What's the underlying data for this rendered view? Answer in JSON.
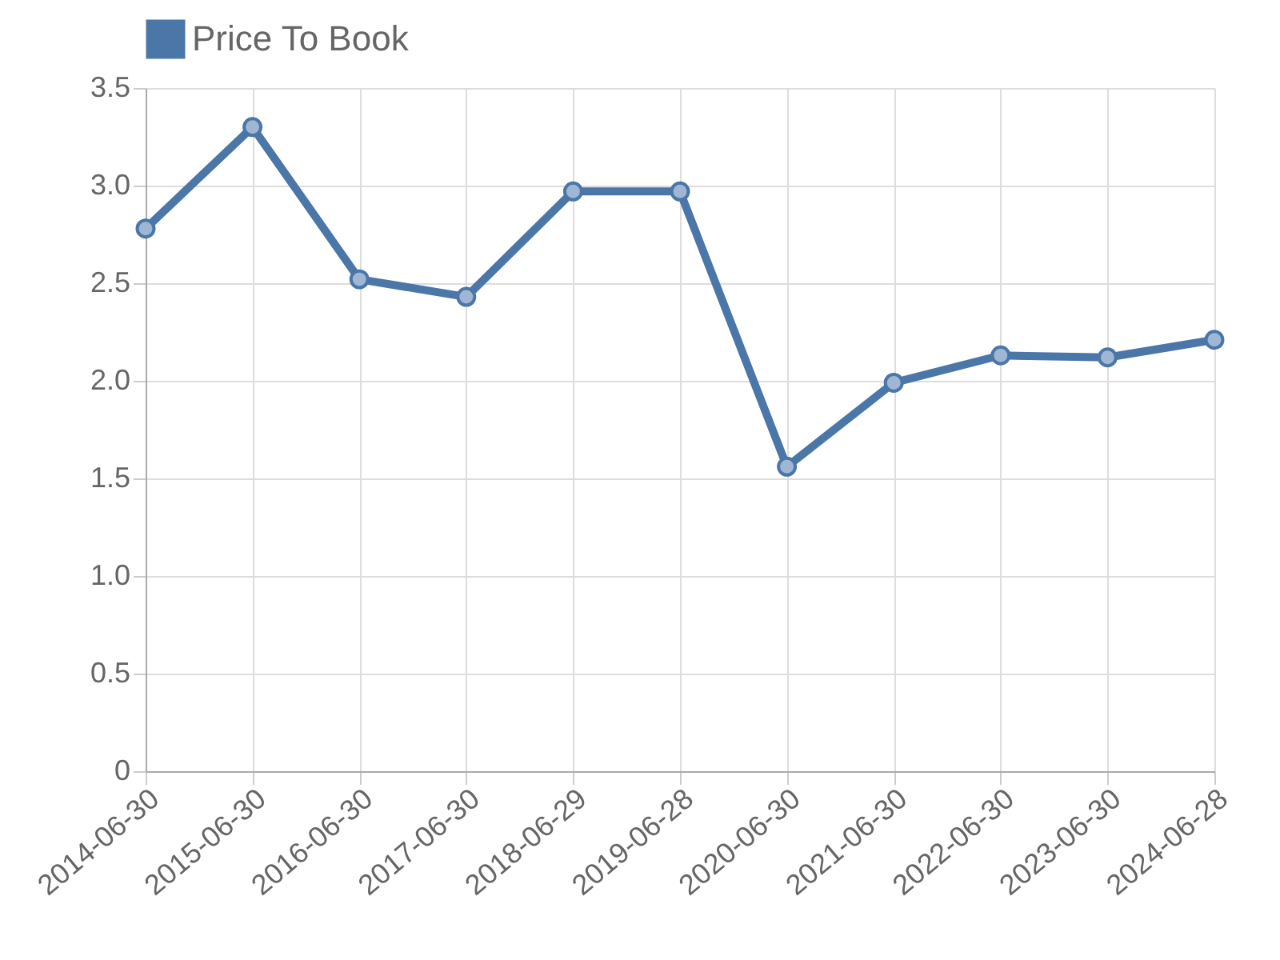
{
  "chart_data": {
    "type": "line",
    "categories": [
      "2014-06-30",
      "2015-06-30",
      "2016-06-30",
      "2017-06-30",
      "2018-06-29",
      "2019-06-28",
      "2020-06-30",
      "2021-06-30",
      "2022-06-30",
      "2023-06-30",
      "2024-06-28"
    ],
    "series": [
      {
        "name": "Price To Book",
        "color": "#4a76a8",
        "values": [
          2.78,
          3.3,
          2.52,
          2.43,
          2.97,
          2.97,
          1.56,
          1.99,
          2.13,
          2.12,
          2.21
        ]
      }
    ],
    "ylim": [
      0,
      3.5
    ],
    "yticks": [
      0,
      0.5,
      {
        "value": 1,
        "label": "1.0"
      },
      1.5,
      {
        "value": 2,
        "label": "2.0"
      },
      2.5,
      {
        "value": 3,
        "label": "3.0"
      },
      3.5
    ],
    "grid": true,
    "legend": "top",
    "marker": "circle"
  }
}
